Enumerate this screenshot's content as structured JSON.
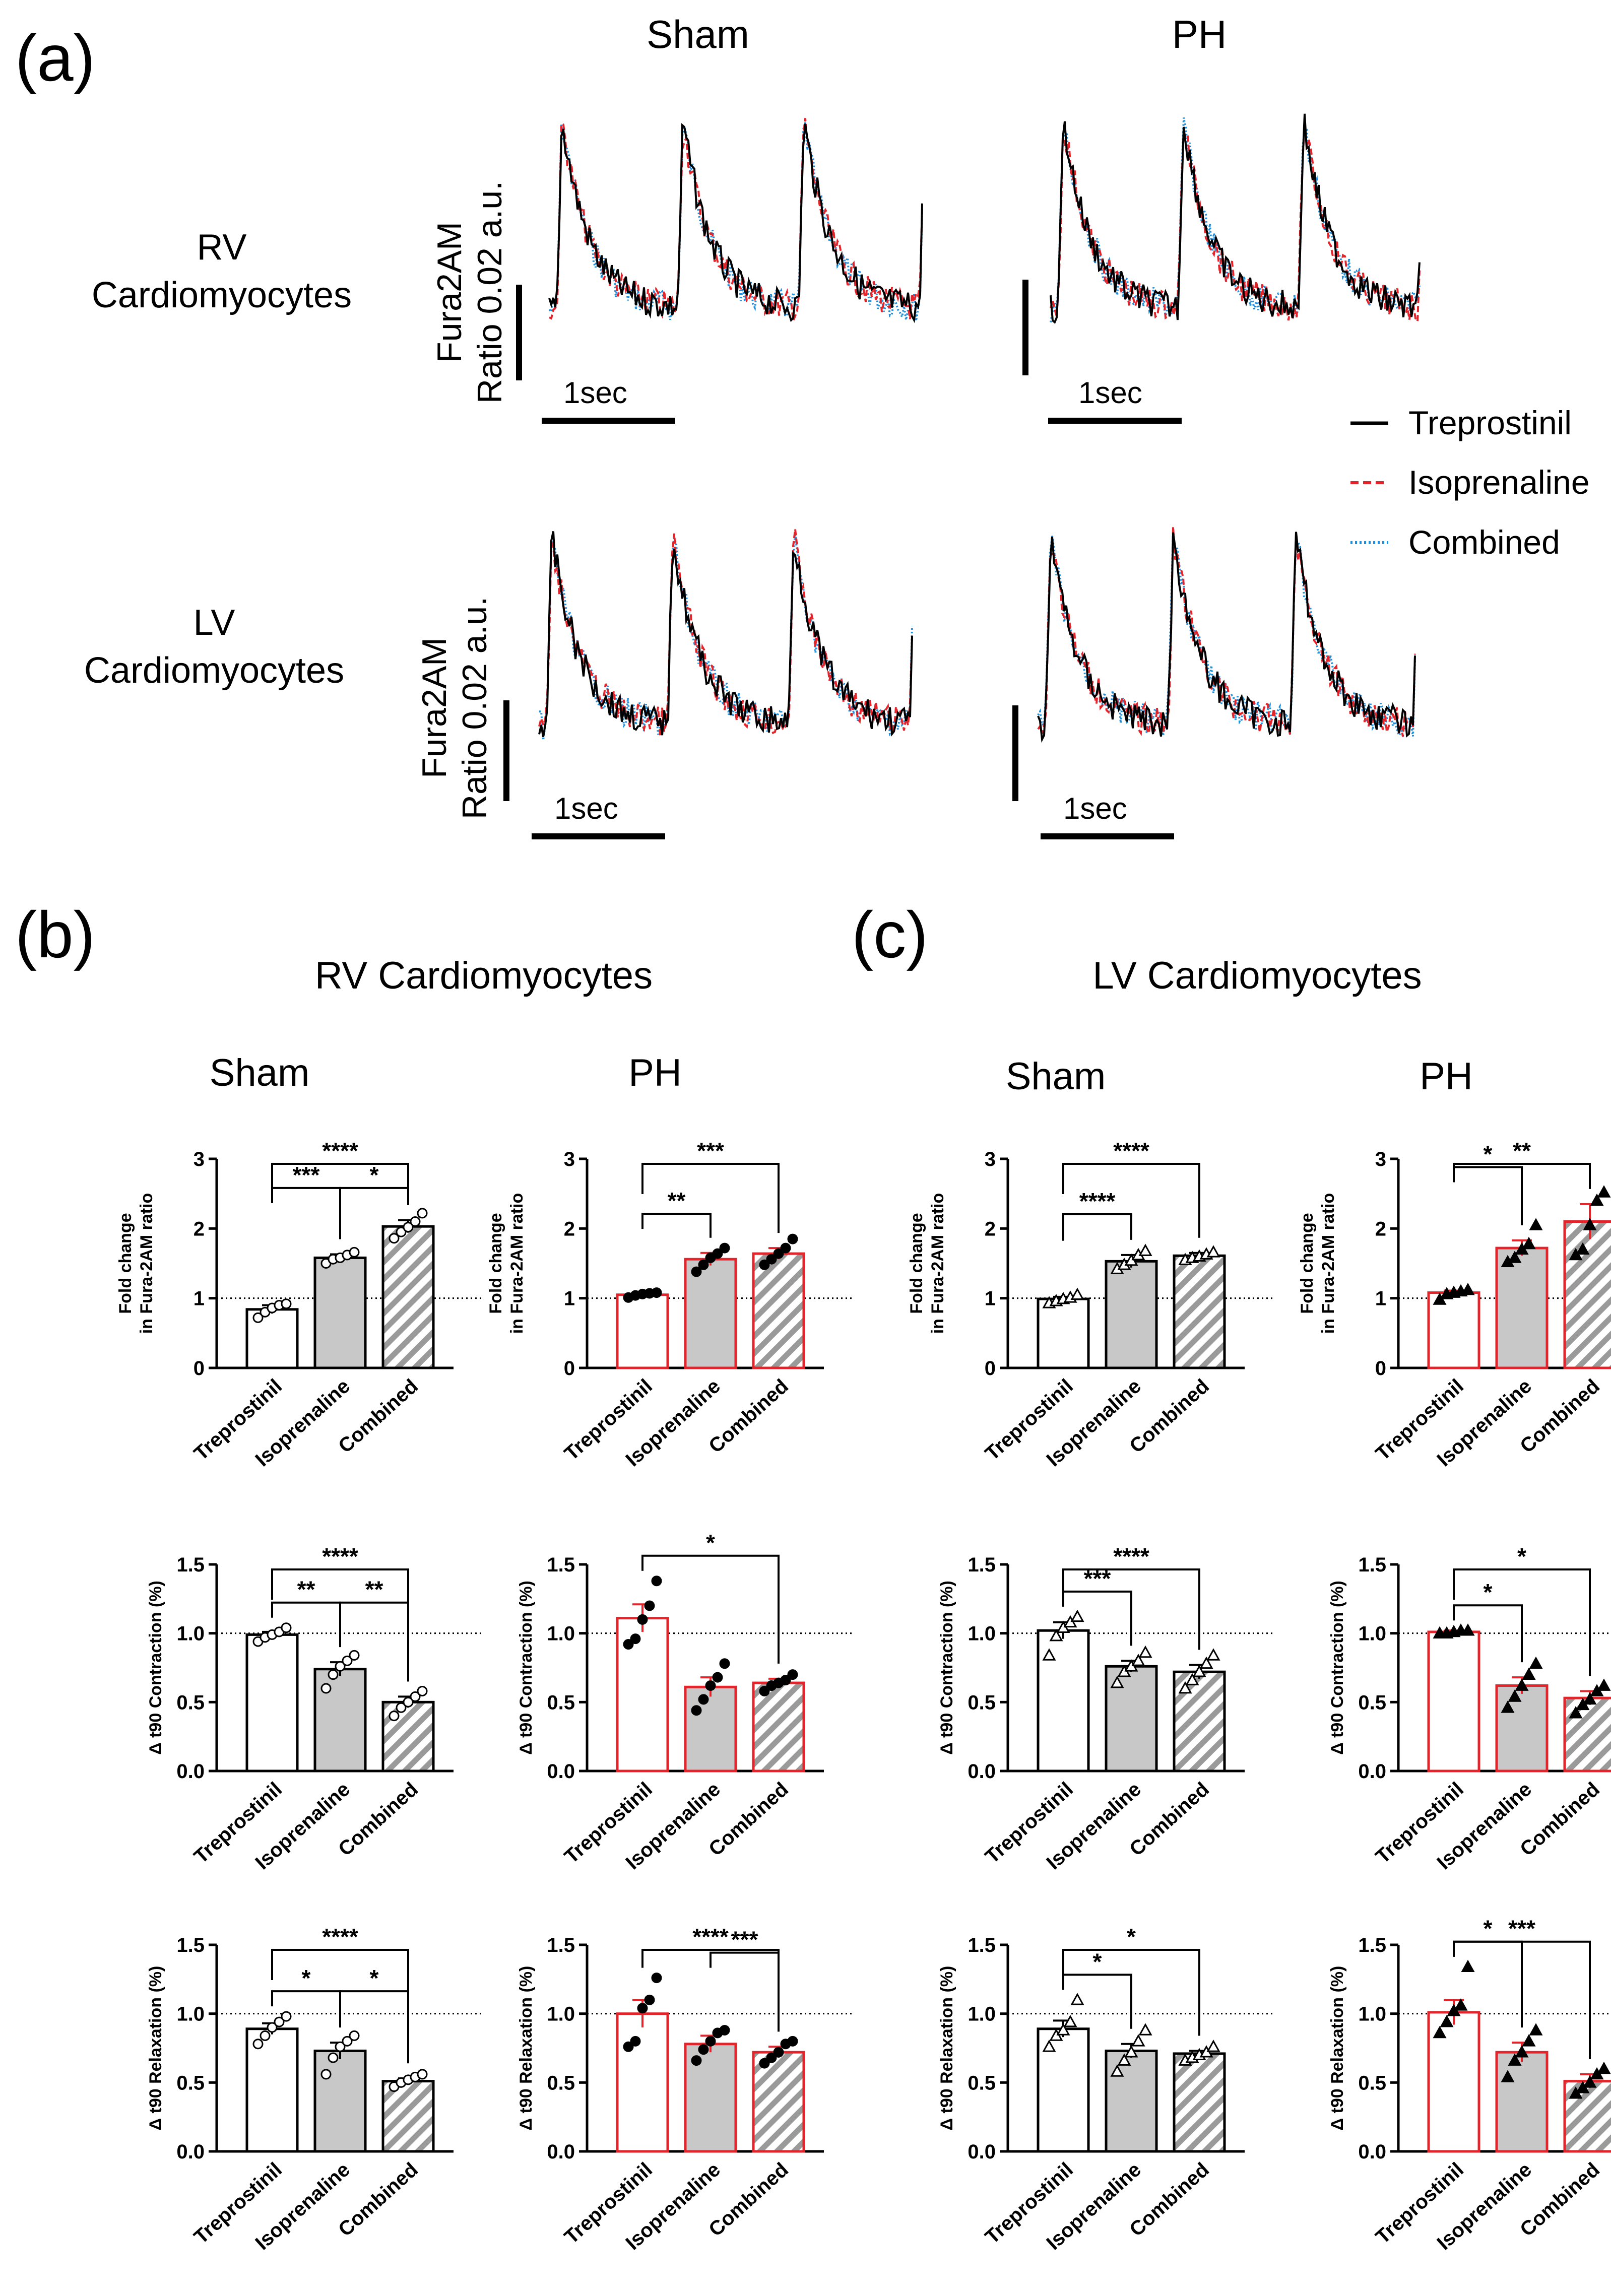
{
  "panel_a": {
    "letter": "(a)",
    "col_titles": [
      "Sham",
      "PH"
    ],
    "row_titles": [
      [
        "RV",
        "Cardiomyocytes"
      ],
      [
        "LV",
        "Cardiomyocytes"
      ]
    ],
    "y_label": [
      "Fura2AM",
      "Ratio 0.02 a.u."
    ],
    "scale_bar_label": "1sec",
    "legend": [
      {
        "label": "Treprostinil",
        "color": "#000000",
        "style": "solid"
      },
      {
        "label": "Isoprenaline",
        "color": "#e3242b",
        "style": "dashed"
      },
      {
        "label": "Combined",
        "color": "#1f8fdc",
        "style": "dotted"
      }
    ]
  },
  "panel_b": {
    "letter": "(b)",
    "title": "RV Cardiomyocytes"
  },
  "panel_c": {
    "letter": "(c)",
    "title": "LV Cardiomyocytes"
  },
  "group_titles": [
    "Sham",
    "PH",
    "Sham",
    "PH"
  ],
  "colors": {
    "sham_edge": "#000000",
    "ph_edge": "#e3242b",
    "isoprenaline_fill": "#c8c8c8",
    "hatch": "#9a9a9a"
  },
  "chart_data": [
    {
      "type": "bar",
      "panel": "b",
      "group": "Sham",
      "categories": [
        "Treprostinil",
        "Isoprenaline",
        "Combined"
      ],
      "values": [
        0.84,
        1.58,
        2.03
      ],
      "errors": [
        0.06,
        0.05,
        0.09
      ],
      "ylabel": [
        "Fold  change",
        "in Fura-2AM ratio"
      ],
      "ylim": [
        0,
        3
      ],
      "yticks": [
        0,
        1,
        2,
        3
      ],
      "reference_line": 1.0,
      "marker": "circle-open",
      "points": [
        [
          0.72,
          0.8,
          0.86,
          0.9,
          0.92
        ],
        [
          1.5,
          1.56,
          1.58,
          1.62,
          1.66
        ],
        [
          1.86,
          1.95,
          2.02,
          2.1,
          2.22
        ]
      ],
      "significance": [
        {
          "pair": [
            0,
            1
          ],
          "label": "***"
        },
        {
          "pair": [
            1,
            2
          ],
          "label": "*"
        },
        {
          "pair": [
            0,
            2
          ],
          "label": "****"
        }
      ]
    },
    {
      "type": "bar",
      "panel": "b",
      "group": "PH",
      "categories": [
        "Treprostinil",
        "Isoprenaline",
        "Combined"
      ],
      "values": [
        1.05,
        1.56,
        1.64
      ],
      "errors": [
        0.03,
        0.09,
        0.08
      ],
      "ylabel": [
        "Fold  change",
        "in Fura-2AM ratio"
      ],
      "ylim": [
        0,
        3
      ],
      "yticks": [
        0,
        1,
        2,
        3
      ],
      "reference_line": 1.0,
      "marker": "circle-filled",
      "points": [
        [
          1.01,
          1.04,
          1.06,
          1.07,
          1.08
        ],
        [
          1.38,
          1.48,
          1.58,
          1.64,
          1.72
        ],
        [
          1.48,
          1.56,
          1.64,
          1.72,
          1.85
        ]
      ],
      "significance": [
        {
          "pair": [
            0,
            1
          ],
          "label": "**"
        },
        {
          "pair": [
            0,
            2
          ],
          "label": "***"
        }
      ]
    },
    {
      "type": "bar",
      "panel": "c",
      "group": "Sham",
      "categories": [
        "Treprostinil",
        "Isoprenaline",
        "Combined"
      ],
      "values": [
        0.99,
        1.53,
        1.61
      ],
      "errors": [
        0.03,
        0.09,
        0.04
      ],
      "ylabel": [
        "Fold  change",
        "in Fura-2AM ratio"
      ],
      "ylim": [
        0,
        3
      ],
      "yticks": [
        0,
        1,
        2,
        3
      ],
      "reference_line": 1.0,
      "marker": "triangle-open",
      "points": [
        [
          0.93,
          0.96,
          0.99,
          1.01,
          1.05
        ],
        [
          1.42,
          1.48,
          1.54,
          1.62,
          1.68
        ],
        [
          1.55,
          1.58,
          1.6,
          1.63,
          1.66
        ]
      ],
      "significance": [
        {
          "pair": [
            0,
            1
          ],
          "label": "****"
        },
        {
          "pair": [
            0,
            2
          ],
          "label": "****"
        }
      ]
    },
    {
      "type": "bar",
      "panel": "c",
      "group": "PH",
      "categories": [
        "Treprostinil",
        "Isoprenaline",
        "Combined"
      ],
      "values": [
        1.08,
        1.72,
        2.1
      ],
      "errors": [
        0.03,
        0.11,
        0.25
      ],
      "ylabel": [
        "Fold  change",
        "in Fura-2AM ratio"
      ],
      "ylim": [
        0,
        3
      ],
      "yticks": [
        0,
        1,
        2,
        3
      ],
      "reference_line": 1.0,
      "marker": "triangle-filled",
      "points": [
        [
          0.98,
          1.06,
          1.08,
          1.1,
          1.12
        ],
        [
          1.52,
          1.58,
          1.7,
          1.78,
          2.05
        ],
        [
          1.62,
          1.7,
          2.05,
          2.4,
          2.52
        ]
      ],
      "significance": [
        {
          "pair": [
            0,
            1
          ],
          "label": "*"
        },
        {
          "pair": [
            0,
            2
          ],
          "label": "**"
        }
      ]
    },
    {
      "type": "bar",
      "panel": "b",
      "group": "Sham",
      "categories": [
        "Treprostinil",
        "Isoprenaline",
        "Combined"
      ],
      "values": [
        0.99,
        0.74,
        0.5
      ],
      "errors": [
        0.02,
        0.05,
        0.04
      ],
      "ylabel": [
        "Δ t90 Contraction (%)"
      ],
      "ylim": [
        0,
        1.5
      ],
      "yticks": [
        0.0,
        0.5,
        1.0,
        1.5
      ],
      "reference_line": 1.0,
      "marker": "circle-open",
      "points": [
        [
          0.94,
          0.97,
          0.99,
          1.01,
          1.04
        ],
        [
          0.6,
          0.7,
          0.76,
          0.8,
          0.84
        ],
        [
          0.4,
          0.46,
          0.5,
          0.54,
          0.58
        ]
      ],
      "significance": [
        {
          "pair": [
            0,
            1
          ],
          "label": "**"
        },
        {
          "pair": [
            1,
            2
          ],
          "label": "**"
        },
        {
          "pair": [
            0,
            2
          ],
          "label": "****"
        }
      ]
    },
    {
      "type": "bar",
      "panel": "b",
      "group": "PH",
      "categories": [
        "Treprostinil",
        "Isoprenaline",
        "Combined"
      ],
      "values": [
        1.11,
        0.61,
        0.64
      ],
      "errors": [
        0.1,
        0.07,
        0.03
      ],
      "ylabel": [
        "Δ t90 Contraction (%)"
      ],
      "ylim": [
        0,
        1.5
      ],
      "yticks": [
        0.0,
        0.5,
        1.0,
        1.5
      ],
      "reference_line": 1.0,
      "marker": "circle-filled",
      "points": [
        [
          0.92,
          0.96,
          1.1,
          1.2,
          1.38
        ],
        [
          0.44,
          0.52,
          0.62,
          0.68,
          0.78
        ],
        [
          0.58,
          0.62,
          0.64,
          0.66,
          0.7
        ]
      ],
      "significance": [
        {
          "pair": [
            0,
            2
          ],
          "label": "*"
        }
      ]
    },
    {
      "type": "bar",
      "panel": "c",
      "group": "Sham",
      "categories": [
        "Treprostinil",
        "Isoprenaline",
        "Combined"
      ],
      "values": [
        1.02,
        0.76,
        0.72
      ],
      "errors": [
        0.06,
        0.04,
        0.05
      ],
      "ylabel": [
        "Δ t90 Contraction (%)"
      ],
      "ylim": [
        0,
        1.5
      ],
      "yticks": [
        0.0,
        0.5,
        1.0,
        1.5
      ],
      "reference_line": 1.0,
      "marker": "triangle-open",
      "points": [
        [
          0.84,
          0.98,
          1.04,
          1.08,
          1.12
        ],
        [
          0.64,
          0.72,
          0.76,
          0.8,
          0.86
        ],
        [
          0.6,
          0.66,
          0.72,
          0.78,
          0.84
        ]
      ],
      "significance": [
        {
          "pair": [
            0,
            1
          ],
          "label": "***"
        },
        {
          "pair": [
            0,
            2
          ],
          "label": "****"
        }
      ]
    },
    {
      "type": "bar",
      "panel": "c",
      "group": "PH",
      "categories": [
        "Treprostinil",
        "Isoprenaline",
        "Combined"
      ],
      "values": [
        1.01,
        0.62,
        0.53
      ],
      "errors": [
        0.01,
        0.06,
        0.05
      ],
      "ylabel": [
        "Δ t90 Contraction (%)"
      ],
      "ylim": [
        0,
        1.5
      ],
      "yticks": [
        0.0,
        0.5,
        1.0,
        1.5
      ],
      "reference_line": 1.0,
      "marker": "triangle-filled",
      "points": [
        [
          1.0,
          1.0,
          1.01,
          1.02,
          1.02
        ],
        [
          0.46,
          0.54,
          0.62,
          0.7,
          0.78
        ],
        [
          0.42,
          0.48,
          0.52,
          0.58,
          0.62
        ]
      ],
      "significance": [
        {
          "pair": [
            0,
            1
          ],
          "label": "*"
        },
        {
          "pair": [
            0,
            2
          ],
          "label": "*"
        }
      ]
    },
    {
      "type": "bar",
      "panel": "b",
      "group": "Sham",
      "categories": [
        "Treprostinil",
        "Isoprenaline",
        "Combined"
      ],
      "values": [
        0.89,
        0.73,
        0.51
      ],
      "errors": [
        0.04,
        0.06,
        0.02
      ],
      "ylabel": [
        "Δ t90 Relaxation (%)"
      ],
      "ylim": [
        0,
        1.5
      ],
      "yticks": [
        0.0,
        0.5,
        1.0,
        1.5
      ],
      "reference_line": 1.0,
      "marker": "circle-open",
      "points": [
        [
          0.78,
          0.84,
          0.9,
          0.94,
          0.98
        ],
        [
          0.56,
          0.68,
          0.76,
          0.8,
          0.84
        ],
        [
          0.47,
          0.5,
          0.52,
          0.54,
          0.56
        ]
      ],
      "significance": [
        {
          "pair": [
            0,
            1
          ],
          "label": "*"
        },
        {
          "pair": [
            1,
            2
          ],
          "label": "*"
        },
        {
          "pair": [
            0,
            2
          ],
          "label": "****"
        }
      ]
    },
    {
      "type": "bar",
      "panel": "b",
      "group": "PH",
      "categories": [
        "Treprostinil",
        "Isoprenaline",
        "Combined"
      ],
      "values": [
        1.0,
        0.78,
        0.72
      ],
      "errors": [
        0.1,
        0.06,
        0.04
      ],
      "ylabel": [
        "Δ t90 Relaxation (%)"
      ],
      "ylim": [
        0,
        1.5
      ],
      "yticks": [
        0.0,
        0.5,
        1.0,
        1.5
      ],
      "reference_line": 1.0,
      "marker": "circle-filled",
      "points": [
        [
          0.76,
          0.8,
          1.04,
          1.1,
          1.26
        ],
        [
          0.66,
          0.74,
          0.8,
          0.86,
          0.88
        ],
        [
          0.64,
          0.68,
          0.72,
          0.78,
          0.8
        ]
      ],
      "significance": [
        {
          "pair": [
            0,
            2
          ],
          "label": "****"
        },
        {
          "pair": [
            1,
            2
          ],
          "label": "***"
        }
      ]
    },
    {
      "type": "bar",
      "panel": "c",
      "group": "Sham",
      "categories": [
        "Treprostinil",
        "Isoprenaline",
        "Combined"
      ],
      "values": [
        0.89,
        0.73,
        0.71
      ],
      "errors": [
        0.06,
        0.05,
        0.02
      ],
      "ylabel": [
        "Δ t90 Relaxation (%)"
      ],
      "ylim": [
        0,
        1.5
      ],
      "yticks": [
        0.0,
        0.5,
        1.0,
        1.5
      ],
      "reference_line": 1.0,
      "marker": "triangle-open",
      "points": [
        [
          0.76,
          0.84,
          0.88,
          0.94,
          1.1
        ],
        [
          0.58,
          0.66,
          0.72,
          0.8,
          0.88
        ],
        [
          0.66,
          0.68,
          0.7,
          0.72,
          0.76
        ]
      ],
      "significance": [
        {
          "pair": [
            0,
            1
          ],
          "label": "*"
        },
        {
          "pair": [
            0,
            2
          ],
          "label": "*"
        }
      ]
    },
    {
      "type": "bar",
      "panel": "c",
      "group": "PH",
      "categories": [
        "Treprostinil",
        "Isoprenaline",
        "Combined"
      ],
      "values": [
        1.01,
        0.72,
        0.51
      ],
      "errors": [
        0.09,
        0.07,
        0.05
      ],
      "ylabel": [
        "Δ t90 Relaxation (%)"
      ],
      "ylim": [
        0,
        1.5
      ],
      "yticks": [
        0.0,
        0.5,
        1.0,
        1.5
      ],
      "reference_line": 1.0,
      "marker": "triangle-filled",
      "points": [
        [
          0.86,
          0.94,
          1.02,
          1.06,
          1.34
        ],
        [
          0.54,
          0.66,
          0.72,
          0.8,
          0.88
        ],
        [
          0.42,
          0.46,
          0.5,
          0.56,
          0.6
        ]
      ],
      "significance": [
        {
          "pair": [
            0,
            1
          ],
          "label": "*"
        },
        {
          "pair": [
            0,
            2
          ],
          "label": "***"
        }
      ]
    }
  ]
}
